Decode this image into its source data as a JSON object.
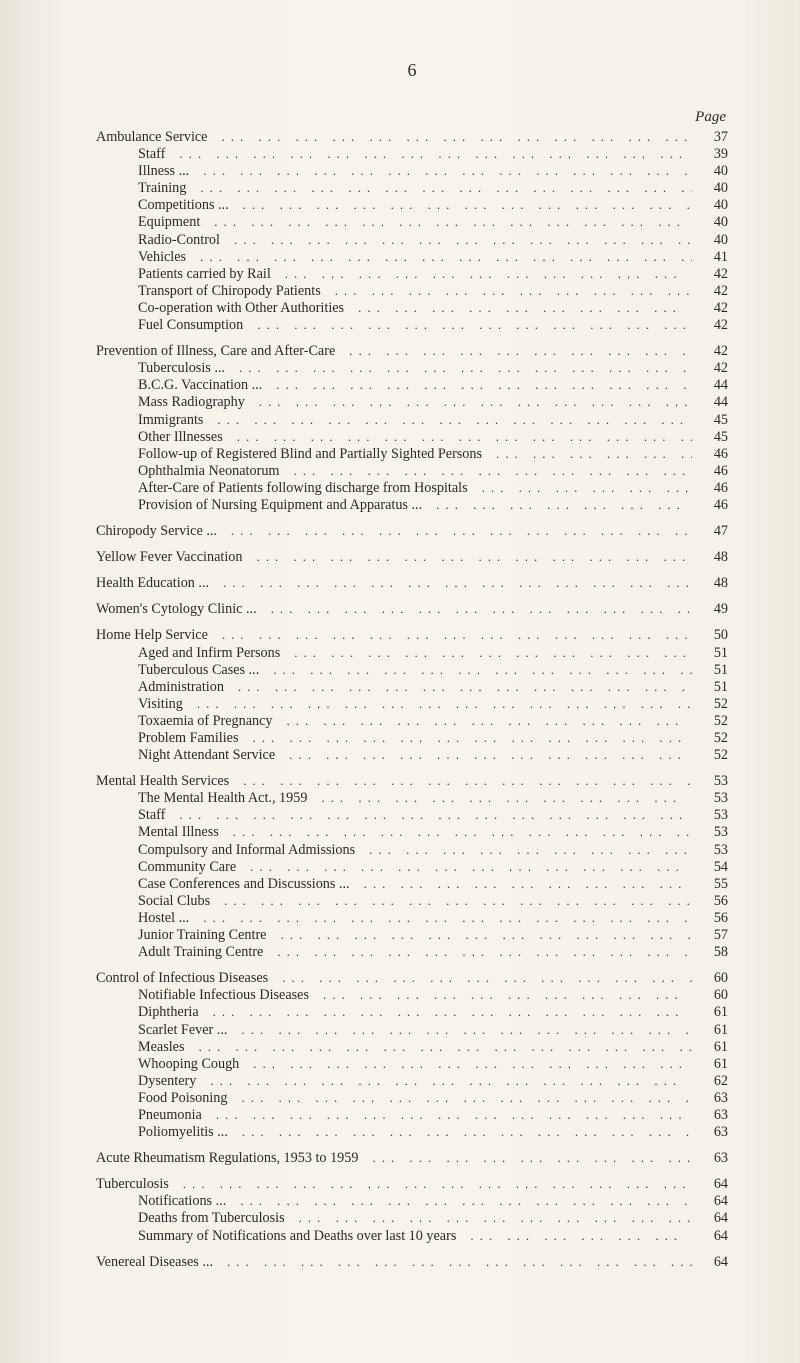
{
  "pageNumber": "6",
  "columnHeader": "Page",
  "dotLeader": "...   ...   ...   ...   ...   ...   ...   ...   ...   ...   ...   ...   ...   ...   ...   ...",
  "sections": [
    {
      "title": "Ambulance Service",
      "page": "37",
      "items": [
        {
          "label": "Staff",
          "page": "39"
        },
        {
          "label": "Illness ...",
          "page": "40"
        },
        {
          "label": "Training",
          "page": "40"
        },
        {
          "label": "Competitions ...",
          "page": "40"
        },
        {
          "label": "Equipment",
          "page": "40"
        },
        {
          "label": "Radio-Control",
          "page": "40"
        },
        {
          "label": "Vehicles",
          "page": "41"
        },
        {
          "label": "Patients carried by Rail",
          "page": "42"
        },
        {
          "label": "Transport of Chiropody Patients",
          "page": "42"
        },
        {
          "label": "Co-operation with Other Authorities",
          "page": "42"
        },
        {
          "label": "Fuel Consumption",
          "page": "42"
        }
      ]
    },
    {
      "title": "Prevention of Illness, Care and After-Care",
      "page": "42",
      "items": [
        {
          "label": "Tuberculosis ...",
          "page": "42"
        },
        {
          "label": "B.C.G. Vaccination ...",
          "page": "44"
        },
        {
          "label": "Mass Radiography",
          "page": "44"
        },
        {
          "label": "Immigrants",
          "page": "45"
        },
        {
          "label": "Other Illnesses",
          "page": "45"
        },
        {
          "label": "Follow-up of Registered Blind and Partially Sighted Persons",
          "page": "46"
        },
        {
          "label": "Ophthalmia Neonatorum",
          "page": "46"
        },
        {
          "label": "After-Care of Patients following discharge from Hospitals",
          "page": "46"
        },
        {
          "label": "Provision of Nursing Equipment and Apparatus ...",
          "page": "46"
        }
      ]
    },
    {
      "title": "Chiropody Service ...",
      "page": "47",
      "items": []
    },
    {
      "title": "Yellow Fever Vaccination",
      "page": "48",
      "items": []
    },
    {
      "title": "Health Education ...",
      "page": "48",
      "items": []
    },
    {
      "title": "Women's Cytology Clinic ...",
      "page": "49",
      "items": []
    },
    {
      "title": "Home Help Service",
      "page": "50",
      "items": [
        {
          "label": "Aged and Infirm Persons",
          "page": "51"
        },
        {
          "label": "Tuberculous Cases ...",
          "page": "51"
        },
        {
          "label": "Administration",
          "page": "51"
        },
        {
          "label": "Visiting",
          "page": "52"
        },
        {
          "label": "Toxaemia of Pregnancy",
          "page": "52"
        },
        {
          "label": "Problem Families",
          "page": "52"
        },
        {
          "label": "Night Attendant Service",
          "page": "52"
        }
      ]
    },
    {
      "title": "Mental Health Services",
      "page": "53",
      "items": [
        {
          "label": "The Mental Health Act., 1959",
          "page": "53"
        },
        {
          "label": "Staff",
          "page": "53"
        },
        {
          "label": "Mental Illness",
          "page": "53"
        },
        {
          "label": "Compulsory and Informal Admissions",
          "page": "53"
        },
        {
          "label": "Community Care",
          "page": "54"
        },
        {
          "label": "Case Conferences and Discussions ...",
          "page": "55"
        },
        {
          "label": "Social Clubs",
          "page": "56"
        },
        {
          "label": "Hostel ...",
          "page": "56"
        },
        {
          "label": "Junior Training Centre",
          "page": "57"
        },
        {
          "label": "Adult Training Centre",
          "page": "58"
        }
      ]
    },
    {
      "title": "Control of Infectious Diseases",
      "page": "60",
      "items": [
        {
          "label": "Notifiable Infectious Diseases",
          "page": "60"
        },
        {
          "label": "Diphtheria",
          "page": "61"
        },
        {
          "label": "Scarlet Fever ...",
          "page": "61"
        },
        {
          "label": "Measles",
          "page": "61"
        },
        {
          "label": "Whooping Cough",
          "page": "61"
        },
        {
          "label": "Dysentery",
          "page": "62"
        },
        {
          "label": "Food Poisoning",
          "page": "63"
        },
        {
          "label": "Pneumonia",
          "page": "63"
        },
        {
          "label": "Poliomyelitis ...",
          "page": "63"
        }
      ]
    },
    {
      "title": "Acute Rheumatism Regulations, 1953 to 1959",
      "page": "63",
      "items": []
    },
    {
      "title": "Tuberculosis",
      "page": "64",
      "items": [
        {
          "label": "Notifications ...",
          "page": "64"
        },
        {
          "label": "Deaths from Tuberculosis",
          "page": "64"
        },
        {
          "label": "Summary of Notifications and Deaths over last 10 years",
          "page": "64"
        }
      ]
    },
    {
      "title": "Venereal Diseases ...",
      "page": "64",
      "items": []
    }
  ]
}
